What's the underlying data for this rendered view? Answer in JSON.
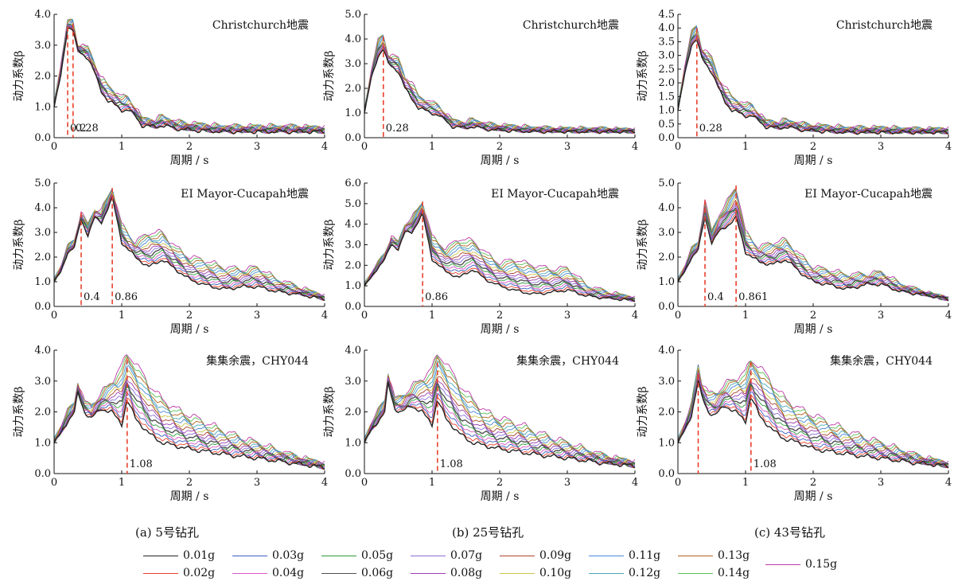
{
  "figure": {
    "xlabel": "周期 / s",
    "ylabel": "动力系数β",
    "captions": [
      "(a) 5号钻孔",
      "(b) 25号钻孔",
      "(c) 43号钻孔"
    ],
    "legend": [
      {
        "label": "0.01g",
        "color": "#222222"
      },
      {
        "label": "0.02g",
        "color": "#e8402c"
      },
      {
        "label": "0.03g",
        "color": "#3b5fc0"
      },
      {
        "label": "0.04g",
        "color": "#d957c4"
      },
      {
        "label": "0.05g",
        "color": "#2e9a3a"
      },
      {
        "label": "0.06g",
        "color": "#505050"
      },
      {
        "label": "0.07g",
        "color": "#8a6fd8"
      },
      {
        "label": "0.08g",
        "color": "#9b3fb0"
      },
      {
        "label": "0.09g",
        "color": "#a8432e"
      },
      {
        "label": "0.10g",
        "color": "#c9c44a"
      },
      {
        "label": "0.11g",
        "color": "#4a86d6"
      },
      {
        "label": "0.12g",
        "color": "#4aa8b8"
      },
      {
        "label": "0.13g",
        "color": "#b5651d"
      },
      {
        "label": "0.14g",
        "color": "#5cc05c"
      },
      {
        "label": "0.15g",
        "color": "#c03aa8"
      }
    ]
  },
  "chart_data": [
    {
      "type": "line",
      "title": "Christchurch地震",
      "xlim": [
        0,
        4
      ],
      "ylim": [
        0,
        4.0
      ],
      "xticks": [
        "0",
        "1",
        "2",
        "3",
        "4"
      ],
      "yticks": [
        "0.0",
        "1.0",
        "2.0",
        "3.0",
        "4.0"
      ],
      "peaks": [
        0.2,
        0.28
      ],
      "peak_labels": [
        "0.2",
        "0.28"
      ],
      "peak_heights": [
        3.6,
        3.7
      ],
      "x": [
        0,
        0.1,
        0.2,
        0.28,
        0.35,
        0.5,
        0.6,
        0.7,
        0.8,
        1.0,
        1.1,
        1.2,
        1.3,
        1.5,
        1.6,
        1.8,
        2.0,
        2.5,
        3.0,
        3.5,
        4.0
      ],
      "series": [
        {
          "name": "0.01g",
          "values": [
            1.0,
            2.0,
            3.6,
            3.5,
            2.8,
            2.6,
            2.1,
            1.5,
            1.2,
            0.9,
            0.9,
            0.7,
            0.4,
            0.35,
            0.4,
            0.3,
            0.25,
            0.2,
            0.2,
            0.2,
            0.2
          ]
        },
        {
          "name": "0.15g",
          "values": [
            1.1,
            2.4,
            3.7,
            3.8,
            3.0,
            2.9,
            2.4,
            1.9,
            1.7,
            1.3,
            1.3,
            1.0,
            0.6,
            0.55,
            0.7,
            0.5,
            0.45,
            0.35,
            0.35,
            0.35,
            0.3
          ]
        }
      ]
    },
    {
      "type": "line",
      "title": "Christchurch地震",
      "xlim": [
        0,
        4
      ],
      "ylim": [
        0,
        5.0
      ],
      "xticks": [
        "0",
        "1",
        "2",
        "3",
        "4"
      ],
      "yticks": [
        "0.0",
        "1.0",
        "2.0",
        "3.0",
        "4.0",
        "5.0"
      ],
      "peaks": [
        0.28
      ],
      "peak_labels": [
        "0.28"
      ],
      "peak_heights": [
        4.1
      ],
      "x": [
        0,
        0.1,
        0.2,
        0.28,
        0.35,
        0.5,
        0.6,
        0.7,
        0.8,
        1.0,
        1.1,
        1.2,
        1.3,
        1.5,
        1.6,
        1.8,
        2.0,
        2.5,
        3.0,
        3.5,
        4.0
      ],
      "series": [
        {
          "name": "0.01g",
          "values": [
            1.0,
            2.4,
            3.3,
            3.6,
            3.0,
            2.7,
            2.0,
            1.6,
            1.2,
            1.0,
            0.9,
            0.7,
            0.45,
            0.4,
            0.45,
            0.35,
            0.3,
            0.25,
            0.25,
            0.25,
            0.25
          ]
        },
        {
          "name": "0.15g",
          "values": [
            1.1,
            2.7,
            3.9,
            4.2,
            3.4,
            3.2,
            2.5,
            2.2,
            1.7,
            1.4,
            1.3,
            1.0,
            0.7,
            0.6,
            0.75,
            0.55,
            0.5,
            0.4,
            0.35,
            0.35,
            0.3
          ]
        }
      ]
    },
    {
      "type": "line",
      "title": "Christchurch地震",
      "xlim": [
        0,
        4
      ],
      "ylim": [
        0,
        4.5
      ],
      "xticks": [
        "0",
        "1",
        "2",
        "3",
        "4"
      ],
      "yticks": [
        "0.0",
        "0.5",
        "1.0",
        "1.5",
        "2.0",
        "2.5",
        "3.0",
        "3.5",
        "4.0",
        "4.5"
      ],
      "peaks": [
        0.28
      ],
      "peak_labels": [
        "0.28"
      ],
      "peak_heights": [
        4.0
      ],
      "x": [
        0,
        0.1,
        0.2,
        0.28,
        0.35,
        0.5,
        0.6,
        0.7,
        0.8,
        1.0,
        1.1,
        1.2,
        1.3,
        1.5,
        1.6,
        1.8,
        2.0,
        2.5,
        3.0,
        3.5,
        4.0
      ],
      "series": [
        {
          "name": "0.01g",
          "values": [
            1.0,
            2.3,
            3.4,
            3.6,
            2.9,
            2.4,
            1.8,
            1.3,
            1.0,
            0.8,
            0.8,
            0.6,
            0.4,
            0.35,
            0.4,
            0.3,
            0.25,
            0.2,
            0.2,
            0.2,
            0.2
          ]
        },
        {
          "name": "0.15g",
          "values": [
            1.1,
            2.6,
            3.8,
            4.1,
            3.3,
            2.9,
            2.2,
            1.8,
            1.5,
            1.2,
            1.2,
            0.9,
            0.6,
            0.55,
            0.65,
            0.5,
            0.45,
            0.35,
            0.35,
            0.3,
            0.3
          ]
        }
      ]
    },
    {
      "type": "line",
      "title": "EI Mayor-Cucapah地震",
      "xlim": [
        0,
        4
      ],
      "ylim": [
        0,
        5.0
      ],
      "xticks": [
        "0",
        "1",
        "2",
        "3",
        "4"
      ],
      "yticks": [
        "0.0",
        "1.0",
        "2.0",
        "3.0",
        "4.0",
        "5.0"
      ],
      "peaks": [
        0.4,
        0.86
      ],
      "peak_labels": [
        "0.4",
        "0.86"
      ],
      "peak_heights": [
        3.8,
        4.8
      ],
      "x": [
        0,
        0.1,
        0.2,
        0.3,
        0.4,
        0.5,
        0.6,
        0.7,
        0.86,
        1.0,
        1.2,
        1.4,
        1.6,
        1.8,
        2.0,
        2.2,
        2.5,
        2.8,
        3.0,
        3.3,
        3.6,
        4.0
      ],
      "series": [
        {
          "name": "0.01g",
          "values": [
            1.0,
            1.4,
            2.2,
            2.4,
            3.5,
            2.9,
            3.6,
            3.4,
            4.4,
            2.6,
            2.0,
            1.6,
            1.9,
            1.5,
            1.1,
            0.9,
            0.7,
            0.8,
            0.8,
            0.6,
            0.5,
            0.3
          ]
        },
        {
          "name": "0.15g",
          "values": [
            1.1,
            1.6,
            2.4,
            2.7,
            3.8,
            3.3,
            3.9,
            3.9,
            4.8,
            3.3,
            2.6,
            3.0,
            3.0,
            2.4,
            2.0,
            1.9,
            1.6,
            1.5,
            1.6,
            1.1,
            0.8,
            0.4
          ]
        }
      ]
    },
    {
      "type": "line",
      "title": "EI Mayor-Cucapah地震",
      "xlim": [
        0,
        4
      ],
      "ylim": [
        0,
        6.0
      ],
      "xticks": [
        "0",
        "1",
        "2",
        "3",
        "4"
      ],
      "yticks": [
        "0.0",
        "1.0",
        "2.0",
        "3.0",
        "4.0",
        "5.0",
        "6.0"
      ],
      "peaks": [
        0.86
      ],
      "peak_labels": [
        "0.86"
      ],
      "peak_heights": [
        5.1
      ],
      "x": [
        0,
        0.1,
        0.2,
        0.3,
        0.4,
        0.5,
        0.6,
        0.7,
        0.86,
        1.0,
        1.2,
        1.4,
        1.6,
        1.8,
        2.0,
        2.2,
        2.5,
        2.8,
        3.0,
        3.3,
        3.6,
        4.0
      ],
      "series": [
        {
          "name": "0.01g",
          "values": [
            1.0,
            1.4,
            1.9,
            2.3,
            3.0,
            2.8,
            3.6,
            3.6,
            4.5,
            2.3,
            1.7,
            1.4,
            1.8,
            1.3,
            1.0,
            0.8,
            0.6,
            0.7,
            0.8,
            0.5,
            0.4,
            0.3
          ]
        },
        {
          "name": "0.15g",
          "values": [
            1.1,
            1.6,
            2.1,
            2.6,
            3.4,
            3.1,
            4.0,
            4.3,
            5.1,
            3.4,
            2.8,
            3.3,
            3.2,
            2.6,
            2.1,
            2.3,
            2.0,
            1.8,
            1.9,
            1.0,
            0.7,
            0.4
          ]
        }
      ]
    },
    {
      "type": "line",
      "title": "EI Mayor-Cucapah地震",
      "xlim": [
        0,
        4
      ],
      "ylim": [
        0,
        5.0
      ],
      "xticks": [
        "0",
        "1",
        "2",
        "3",
        "4"
      ],
      "yticks": [
        "0.0",
        "1.0",
        "2.0",
        "3.0",
        "4.0",
        "5.0"
      ],
      "peaks": [
        0.4,
        0.86
      ],
      "peak_labels": [
        "0.4",
        "0.861"
      ],
      "peak_heights": [
        4.3,
        4.9
      ],
      "x": [
        0,
        0.1,
        0.2,
        0.3,
        0.4,
        0.5,
        0.6,
        0.7,
        0.86,
        1.0,
        1.2,
        1.4,
        1.6,
        1.8,
        2.0,
        2.2,
        2.5,
        2.8,
        3.0,
        3.3,
        3.6,
        4.0
      ],
      "series": [
        {
          "name": "0.01g",
          "values": [
            1.0,
            1.4,
            2.0,
            2.3,
            3.6,
            2.6,
            3.0,
            3.2,
            3.6,
            2.2,
            1.8,
            1.7,
            1.9,
            1.4,
            1.0,
            0.9,
            0.7,
            0.9,
            0.9,
            0.6,
            0.5,
            0.3
          ]
        },
        {
          "name": "0.15g",
          "values": [
            1.1,
            1.6,
            2.3,
            2.6,
            4.3,
            3.0,
            3.7,
            4.1,
            4.9,
            3.0,
            2.4,
            2.6,
            2.7,
            2.1,
            1.6,
            1.5,
            1.3,
            1.3,
            1.4,
            0.9,
            0.6,
            0.3
          ]
        }
      ]
    },
    {
      "type": "line",
      "title": "集集余震，CHY044",
      "xlim": [
        0,
        4
      ],
      "ylim": [
        0,
        4.0
      ],
      "xticks": [
        "0",
        "1",
        "2",
        "3",
        "4"
      ],
      "yticks": [
        "0.0",
        "1.0",
        "2.0",
        "3.0",
        "4.0"
      ],
      "peaks": [
        1.08
      ],
      "peak_labels": [
        "1.08"
      ],
      "peak_heights": [
        3.7
      ],
      "x": [
        0,
        0.1,
        0.2,
        0.3,
        0.35,
        0.45,
        0.55,
        0.7,
        0.85,
        1.0,
        1.08,
        1.2,
        1.4,
        1.6,
        1.8,
        2.0,
        2.3,
        2.6,
        3.0,
        3.5,
        4.0
      ],
      "series": [
        {
          "name": "0.01g",
          "values": [
            1.0,
            1.3,
            1.7,
            2.0,
            2.6,
            2.0,
            1.8,
            2.1,
            2.0,
            1.6,
            2.4,
            1.8,
            1.3,
            1.0,
            0.9,
            0.8,
            0.7,
            0.6,
            0.5,
            0.35,
            0.2
          ]
        },
        {
          "name": "0.15g",
          "values": [
            1.1,
            1.5,
            2.0,
            2.3,
            3.0,
            2.3,
            2.2,
            2.6,
            3.0,
            3.5,
            3.9,
            3.6,
            2.9,
            2.4,
            2.1,
            1.9,
            1.6,
            1.3,
            1.0,
            0.6,
            0.3
          ]
        }
      ]
    },
    {
      "type": "line",
      "title": "集集余震，CHY044",
      "xlim": [
        0,
        4
      ],
      "ylim": [
        0,
        4.0
      ],
      "xticks": [
        "0",
        "1",
        "2",
        "3",
        "4"
      ],
      "yticks": [
        "0.0",
        "1.0",
        "2.0",
        "3.0",
        "4.0"
      ],
      "peaks": [
        1.08
      ],
      "peak_labels": [
        "1.08"
      ],
      "peak_heights": [
        3.6
      ],
      "x": [
        0,
        0.1,
        0.2,
        0.3,
        0.35,
        0.45,
        0.55,
        0.7,
        0.85,
        1.0,
        1.08,
        1.2,
        1.4,
        1.6,
        1.8,
        2.0,
        2.3,
        2.6,
        3.0,
        3.5,
        4.0
      ],
      "series": [
        {
          "name": "0.01g",
          "values": [
            1.0,
            1.4,
            1.7,
            2.0,
            2.9,
            2.1,
            2.0,
            2.2,
            2.0,
            1.6,
            2.4,
            1.8,
            1.3,
            1.0,
            0.9,
            0.8,
            0.7,
            0.6,
            0.5,
            0.35,
            0.25
          ]
        },
        {
          "name": "0.15g",
          "values": [
            1.1,
            1.6,
            2.0,
            2.4,
            3.3,
            2.4,
            2.5,
            2.8,
            3.1,
            3.4,
            3.9,
            3.6,
            2.9,
            2.4,
            2.0,
            1.8,
            1.6,
            1.3,
            1.0,
            0.6,
            0.35
          ]
        }
      ]
    },
    {
      "type": "line",
      "title": "集集余震，CHY044",
      "xlim": [
        0,
        4
      ],
      "ylim": [
        0,
        4.0
      ],
      "xticks": [
        "0",
        "1",
        "2",
        "3",
        "4"
      ],
      "yticks": [
        "0.0",
        "1.0",
        "2.0",
        "3.0",
        "4.0"
      ],
      "peaks": [
        0.3,
        1.08
      ],
      "peak_labels": [
        "",
        "1.08"
      ],
      "peak_heights": [
        3.2,
        3.6
      ],
      "x": [
        0,
        0.1,
        0.2,
        0.3,
        0.35,
        0.45,
        0.55,
        0.7,
        0.85,
        1.0,
        1.08,
        1.2,
        1.4,
        1.6,
        1.8,
        2.0,
        2.3,
        2.6,
        3.0,
        3.5,
        4.0
      ],
      "series": [
        {
          "name": "0.01g",
          "values": [
            1.0,
            1.4,
            1.9,
            3.0,
            2.5,
            2.0,
            1.9,
            2.2,
            2.0,
            1.7,
            2.5,
            1.9,
            1.4,
            1.1,
            1.0,
            0.8,
            0.7,
            0.6,
            0.5,
            0.35,
            0.25
          ]
        },
        {
          "name": "0.15g",
          "values": [
            1.1,
            1.6,
            2.2,
            3.6,
            3.0,
            2.6,
            2.6,
            2.9,
            3.1,
            3.3,
            3.7,
            3.5,
            2.9,
            2.4,
            2.1,
            1.9,
            1.6,
            1.3,
            1.0,
            0.6,
            0.3
          ]
        }
      ]
    }
  ]
}
